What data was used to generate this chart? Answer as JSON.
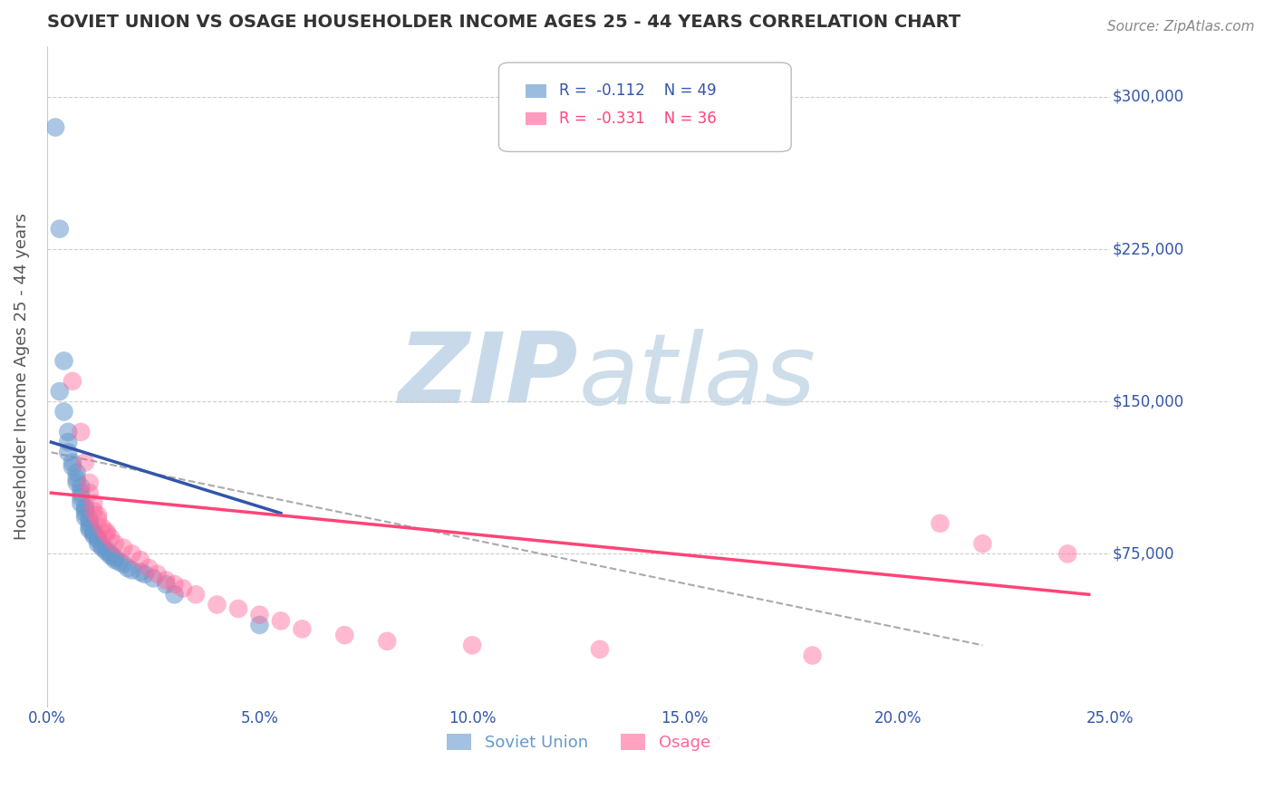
{
  "title": "SOVIET UNION VS OSAGE HOUSEHOLDER INCOME AGES 25 - 44 YEARS CORRELATION CHART",
  "source_text": "Source: ZipAtlas.com",
  "ylabel": "Householder Income Ages 25 - 44 years",
  "xlim": [
    0.0,
    0.25
  ],
  "ylim": [
    0,
    325000
  ],
  "yticks": [
    75000,
    150000,
    225000,
    300000
  ],
  "ytick_labels": [
    "$75,000",
    "$150,000",
    "$225,000",
    "$300,000"
  ],
  "xticks": [
    0.0,
    0.05,
    0.1,
    0.15,
    0.2,
    0.25
  ],
  "xtick_labels": [
    "0.0%",
    "5.0%",
    "10.0%",
    "15.0%",
    "20.0%",
    "25.0%"
  ],
  "legend_line1": "R =  -0.112    N = 49",
  "legend_line2": "R =  -0.331    N = 36",
  "blue_color": "#6699cc",
  "pink_color": "#ff6699",
  "blue_line_color": "#3355aa",
  "pink_line_color": "#ff4477",
  "dashed_line_color": "#aaaaaa",
  "watermark_zip": "ZIP",
  "watermark_atlas": "atlas",
  "watermark_color": "#c8daea",
  "blue_scatter_x": [
    0.002,
    0.003,
    0.003,
    0.004,
    0.004,
    0.005,
    0.005,
    0.005,
    0.006,
    0.006,
    0.007,
    0.007,
    0.007,
    0.008,
    0.008,
    0.008,
    0.008,
    0.009,
    0.009,
    0.009,
    0.009,
    0.01,
    0.01,
    0.01,
    0.01,
    0.011,
    0.011,
    0.011,
    0.012,
    0.012,
    0.012,
    0.013,
    0.013,
    0.014,
    0.014,
    0.015,
    0.015,
    0.016,
    0.016,
    0.017,
    0.018,
    0.019,
    0.02,
    0.022,
    0.023,
    0.025,
    0.028,
    0.03,
    0.05
  ],
  "blue_scatter_y": [
    285000,
    235000,
    155000,
    170000,
    145000,
    135000,
    130000,
    125000,
    120000,
    118000,
    115000,
    112000,
    110000,
    108000,
    105000,
    103000,
    100000,
    98000,
    97000,
    95000,
    93000,
    92000,
    90000,
    88000,
    87000,
    86000,
    85000,
    84000,
    83000,
    82000,
    80000,
    79000,
    78000,
    77000,
    76000,
    75000,
    74000,
    73000,
    72000,
    71000,
    70000,
    68000,
    67000,
    66000,
    65000,
    63000,
    60000,
    55000,
    40000
  ],
  "pink_scatter_x": [
    0.006,
    0.008,
    0.009,
    0.01,
    0.01,
    0.011,
    0.011,
    0.012,
    0.012,
    0.013,
    0.014,
    0.014,
    0.015,
    0.016,
    0.018,
    0.02,
    0.022,
    0.024,
    0.026,
    0.028,
    0.03,
    0.032,
    0.035,
    0.04,
    0.045,
    0.05,
    0.055,
    0.06,
    0.07,
    0.08,
    0.1,
    0.13,
    0.18,
    0.21,
    0.22,
    0.24
  ],
  "pink_scatter_y": [
    160000,
    135000,
    120000,
    110000,
    105000,
    100000,
    96000,
    94000,
    92000,
    88000,
    86000,
    85000,
    83000,
    80000,
    78000,
    75000,
    72000,
    68000,
    65000,
    62000,
    60000,
    58000,
    55000,
    50000,
    48000,
    45000,
    42000,
    38000,
    35000,
    32000,
    30000,
    28000,
    25000,
    90000,
    80000,
    75000
  ],
  "blue_trend_x": [
    0.001,
    0.055
  ],
  "blue_trend_y": [
    130000,
    95000
  ],
  "pink_trend_x": [
    0.001,
    0.245
  ],
  "pink_trend_y": [
    105000,
    55000
  ],
  "dashed_trend_x": [
    0.001,
    0.22
  ],
  "dashed_trend_y": [
    125000,
    30000
  ],
  "background_color": "#ffffff",
  "grid_color": "#cccccc",
  "tick_label_color": "#3355aa",
  "title_color": "#333333",
  "legend_label_blue": "Soviet Union",
  "legend_label_pink": "Osage"
}
